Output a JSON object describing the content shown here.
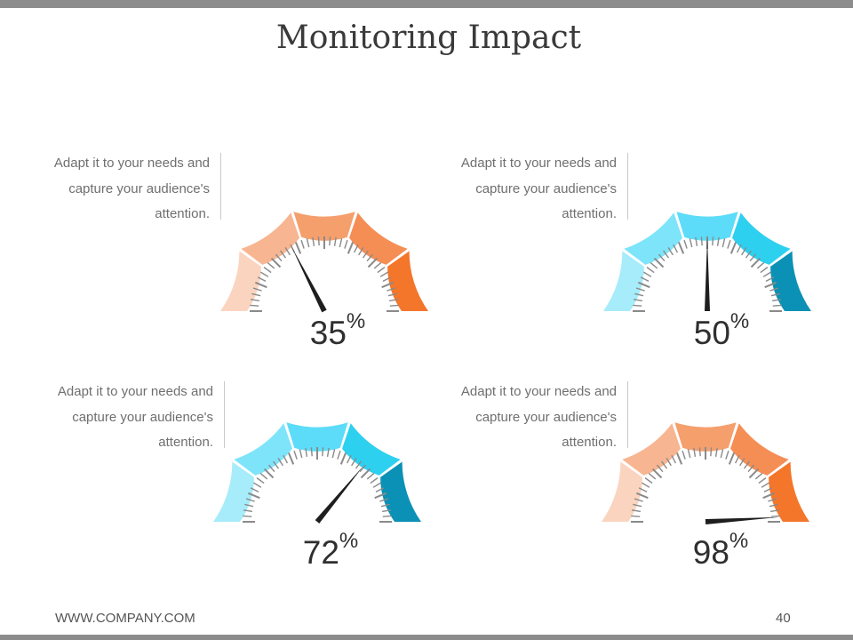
{
  "slide": {
    "title": "Monitoring Impact",
    "footer": "WWW.COMPANY.COM",
    "page_number": "40"
  },
  "gauges": [
    {
      "description": [
        "Adapt it to your needs and",
        "capture your audience's",
        "attention."
      ],
      "value": 35,
      "unit": "%",
      "colors": [
        "#fad4bf",
        "#f7b591",
        "#f59f6d",
        "#f58e55",
        "#f4762b"
      ]
    },
    {
      "description": [
        "Adapt it to your needs and",
        "capture your audience's",
        "attention."
      ],
      "value": 50,
      "unit": "%",
      "colors": [
        "#a6ecfa",
        "#7ee4fa",
        "#5cdcf8",
        "#2ed0ef",
        "#0b91b5"
      ]
    },
    {
      "description": [
        "Adapt it to your needs and",
        "capture your audience's",
        "attention."
      ],
      "value": 72,
      "unit": "%",
      "colors": [
        "#a6ecfa",
        "#7ee4fa",
        "#5cdcf8",
        "#2ed0ef",
        "#0b91b5"
      ]
    },
    {
      "description": [
        "Adapt it to your needs and",
        "capture your audience's",
        "attention."
      ],
      "value": 98,
      "unit": "%",
      "colors": [
        "#fad4bf",
        "#f7b591",
        "#f59f6d",
        "#f58e55",
        "#f4762b"
      ]
    }
  ]
}
